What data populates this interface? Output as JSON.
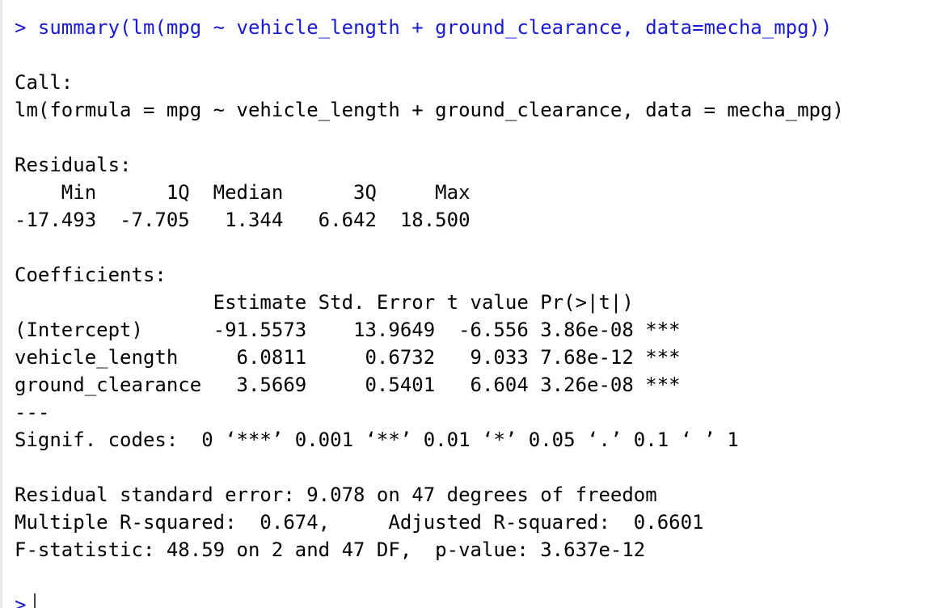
{
  "console": {
    "prompt": ">",
    "command": "summary(lm(mpg ~ vehicle_length + ground_clearance, data=mecha_mpg))",
    "call_header": "Call:",
    "call_formula": "lm(formula = mpg ~ vehicle_length + ground_clearance, data = mecha_mpg)",
    "residuals_header": "Residuals:",
    "residuals_labels": "    Min      1Q  Median      3Q     Max ",
    "residuals_values": "-17.493  -7.705   1.344   6.642  18.500 ",
    "coefficients_header": "Coefficients:",
    "coef_columns": "                 Estimate Std. Error t value Pr(>|t|)    ",
    "coef_rows": [
      "(Intercept)      -91.5573    13.9649  -6.556 3.86e-08 ***",
      "vehicle_length     6.0811     0.6732   9.033 7.68e-12 ***",
      "ground_clearance   3.5669     0.5401   6.604 3.26e-08 ***"
    ],
    "separator": "---",
    "signif_codes": "Signif. codes:  0 ‘***’ 0.001 ‘**’ 0.01 ‘*’ 0.05 ‘.’ 0.1 ‘ ’ 1",
    "residual_se": "Residual standard error: 9.078 on 47 degrees of freedom",
    "r_squared": "Multiple R-squared:  0.674,\tAdjusted R-squared:  0.6601 ",
    "f_statistic": "F-statistic: 48.59 on 2 and 47 DF,  p-value: 3.637e-12",
    "next_prompt": ">"
  },
  "colors": {
    "command": "#1a1ad6",
    "output": "#000000",
    "background": "#ffffff"
  }
}
